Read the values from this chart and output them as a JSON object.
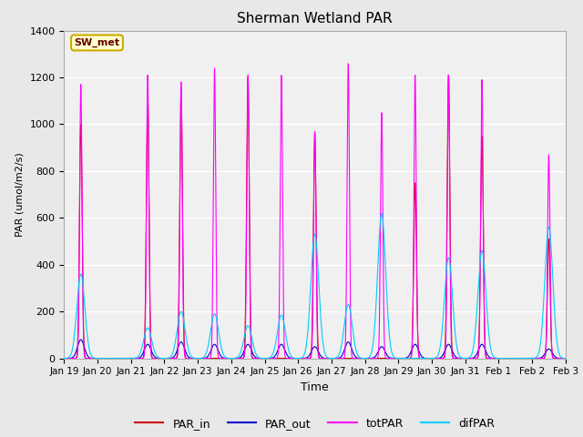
{
  "title": "Sherman Wetland PAR",
  "xlabel": "Time",
  "ylabel": "PAR (umol/m2/s)",
  "ylim": [
    0,
    1400
  ],
  "yticks": [
    0,
    200,
    400,
    600,
    800,
    1000,
    1200,
    1400
  ],
  "background_color": "#e8e8e8",
  "plot_bg_color": "#f0f0f0",
  "grid_color": "white",
  "colors": {
    "PAR_in": "#cc0000",
    "PAR_out": "#0000cc",
    "totPAR": "#ff00ff",
    "difPAR": "#00ccff"
  },
  "legend_label": "SW_met",
  "legend_box_color": "#ffffcc",
  "legend_box_edge": "#ccaa00",
  "legend_text_color": "#660000",
  "num_days": 15,
  "tick_labels": [
    "Jan 19",
    "Jan 20",
    "Jan 21",
    "Jan 22",
    "Jan 23",
    "Jan 24",
    "Jan 25",
    "Jan 26",
    "Jan 27",
    "Jan 28",
    "Jan 29",
    "Jan 30",
    "Jan 31",
    "Feb 1",
    "Feb 2",
    "Feb 3"
  ],
  "daily_peaks": {
    "PAR_in": [
      1000,
      0,
      1120,
      1150,
      0,
      1200,
      0,
      960,
      0,
      0,
      750,
      1210,
      950,
      0,
      510
    ],
    "totPAR": [
      1170,
      0,
      1210,
      1180,
      1240,
      1210,
      1210,
      970,
      1260,
      1050,
      1210,
      1210,
      1190,
      0,
      870
    ],
    "PAR_out": [
      80,
      0,
      60,
      70,
      60,
      60,
      60,
      50,
      70,
      50,
      60,
      60,
      60,
      0,
      40
    ],
    "difPAR": [
      360,
      0,
      130,
      200,
      190,
      140,
      185,
      530,
      230,
      620,
      0,
      430,
      460,
      0,
      560
    ]
  },
  "peak_widths": {
    "PAR_in": 0.04,
    "totPAR": 0.035,
    "PAR_out": 0.1,
    "difPAR": 0.12
  }
}
